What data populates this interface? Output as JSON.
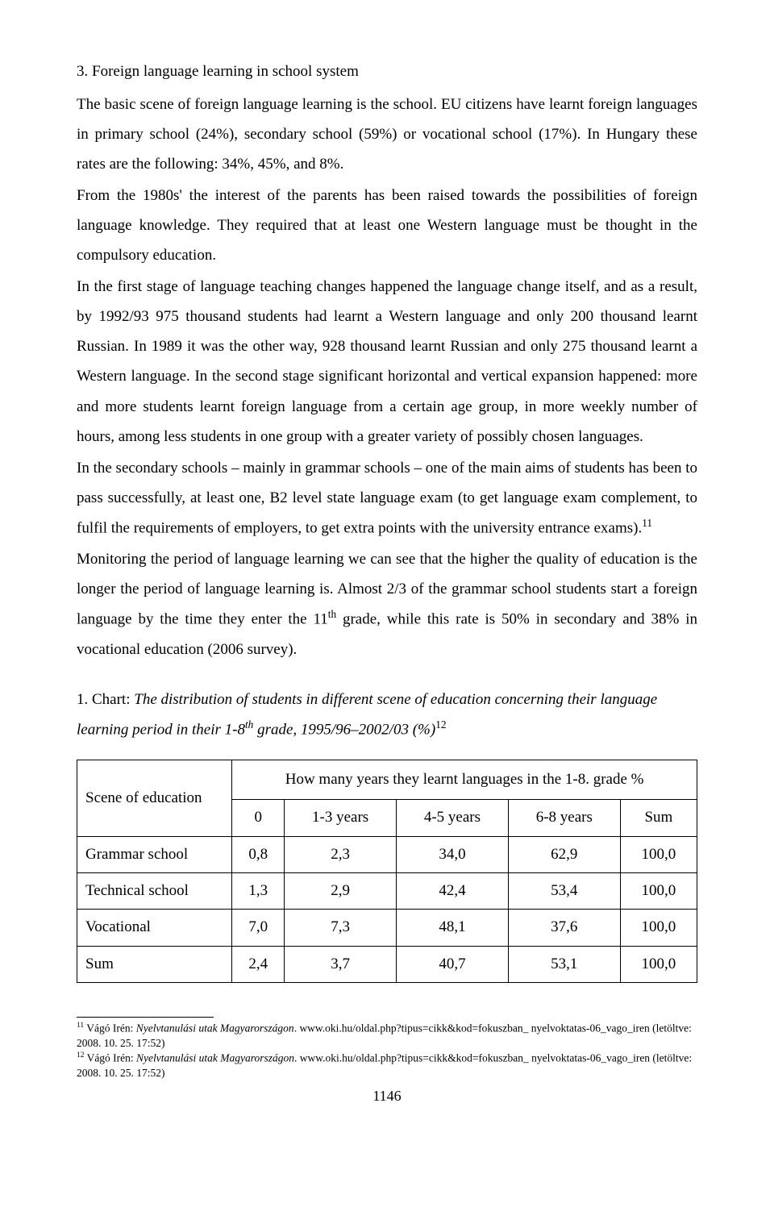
{
  "section": {
    "heading": "3. Foreign language learning in school system",
    "p1": "The basic scene of foreign language learning is the school. EU citizens have learnt foreign languages in primary school (24%), secondary school (59%) or vocational school (17%). In Hungary these rates are the following: 34%, 45%, and 8%.",
    "p2": "From the 1980s' the interest of the parents has been raised towards the possibilities of foreign language knowledge. They required that at least one Western language must be thought in the compulsory education.",
    "p3": " In the first stage of language teaching changes happened the language change itself, and as a result, by 1992/93 975 thousand students had learnt a Western language and only 200 thousand learnt Russian. In 1989 it was the other way, 928 thousand learnt Russian and only 275 thousand learnt a Western language. In the second stage significant horizontal and vertical expansion happened: more and more students learnt foreign language from a certain age group, in more weekly number of hours, among less students in one group with a greater variety of possibly chosen languages.",
    "p4a": "In the secondary schools – mainly in grammar schools – one of the main aims of students has been to pass successfully, at least one, B2 level state language exam (to get language exam complement, to fulfil the requirements of employers, to get extra points with the university entrance exams).",
    "p4_sup": "11",
    "p5a": "Monitoring the period of language learning we can see that the higher the quality of education is the longer the period of language learning is. Almost 2/3 of the grammar school students start a foreign language by the time they enter the 11",
    "p5_sup": "th",
    "p5b": " grade, while this rate is 50% in secondary and 38% in vocational education (2006 survey)."
  },
  "chart": {
    "lead": "1. Chart: ",
    "title_a": "The distribution of students in different scene of education concerning their language learning period in their 1-8",
    "title_sup": "th",
    "title_b": " grade, 1995/96–2002/03 (%)",
    "title_foot": "12"
  },
  "table": {
    "corner": "Scene of education",
    "merged": "How many years they learnt languages in the 1-8. grade %",
    "cols": [
      "0",
      "1-3 years",
      "4-5 years",
      "6-8 years",
      "Sum"
    ],
    "rows": [
      {
        "label": "Grammar school",
        "cells": [
          "0,8",
          "2,3",
          "34,0",
          "62,9",
          "100,0"
        ]
      },
      {
        "label": "Technical school",
        "cells": [
          "1,3",
          "2,9",
          "42,4",
          "53,4",
          "100,0"
        ]
      },
      {
        "label": "Vocational",
        "cells": [
          "7,0",
          "7,3",
          "48,1",
          "37,6",
          "100,0"
        ]
      },
      {
        "label": "Sum",
        "cells": [
          "2,4",
          "3,7",
          "40,7",
          "53,1",
          "100,0"
        ]
      }
    ]
  },
  "footnotes": {
    "f11_num": "11",
    "f11_auth": " Vágó Irén: ",
    "f11_it": "Nyelvtanulási utak Magyarországon",
    "f11_rest": ". www.oki.hu/oldal.php?tipus=cikk&kod=fokuszban_ nyelvoktatas-06_vago_iren (letöltve: 2008. 10. 25. 17:52)",
    "f12_num": "12",
    "f12_auth": " Vágó Irén: ",
    "f12_it": "Nyelvtanulási utak Magyarországon",
    "f12_rest": ". www.oki.hu/oldal.php?tipus=cikk&kod=fokuszban_ nyelvoktatas-06_vago_iren (letöltve: 2008. 10. 25. 17:52)"
  },
  "page_number": "1146"
}
